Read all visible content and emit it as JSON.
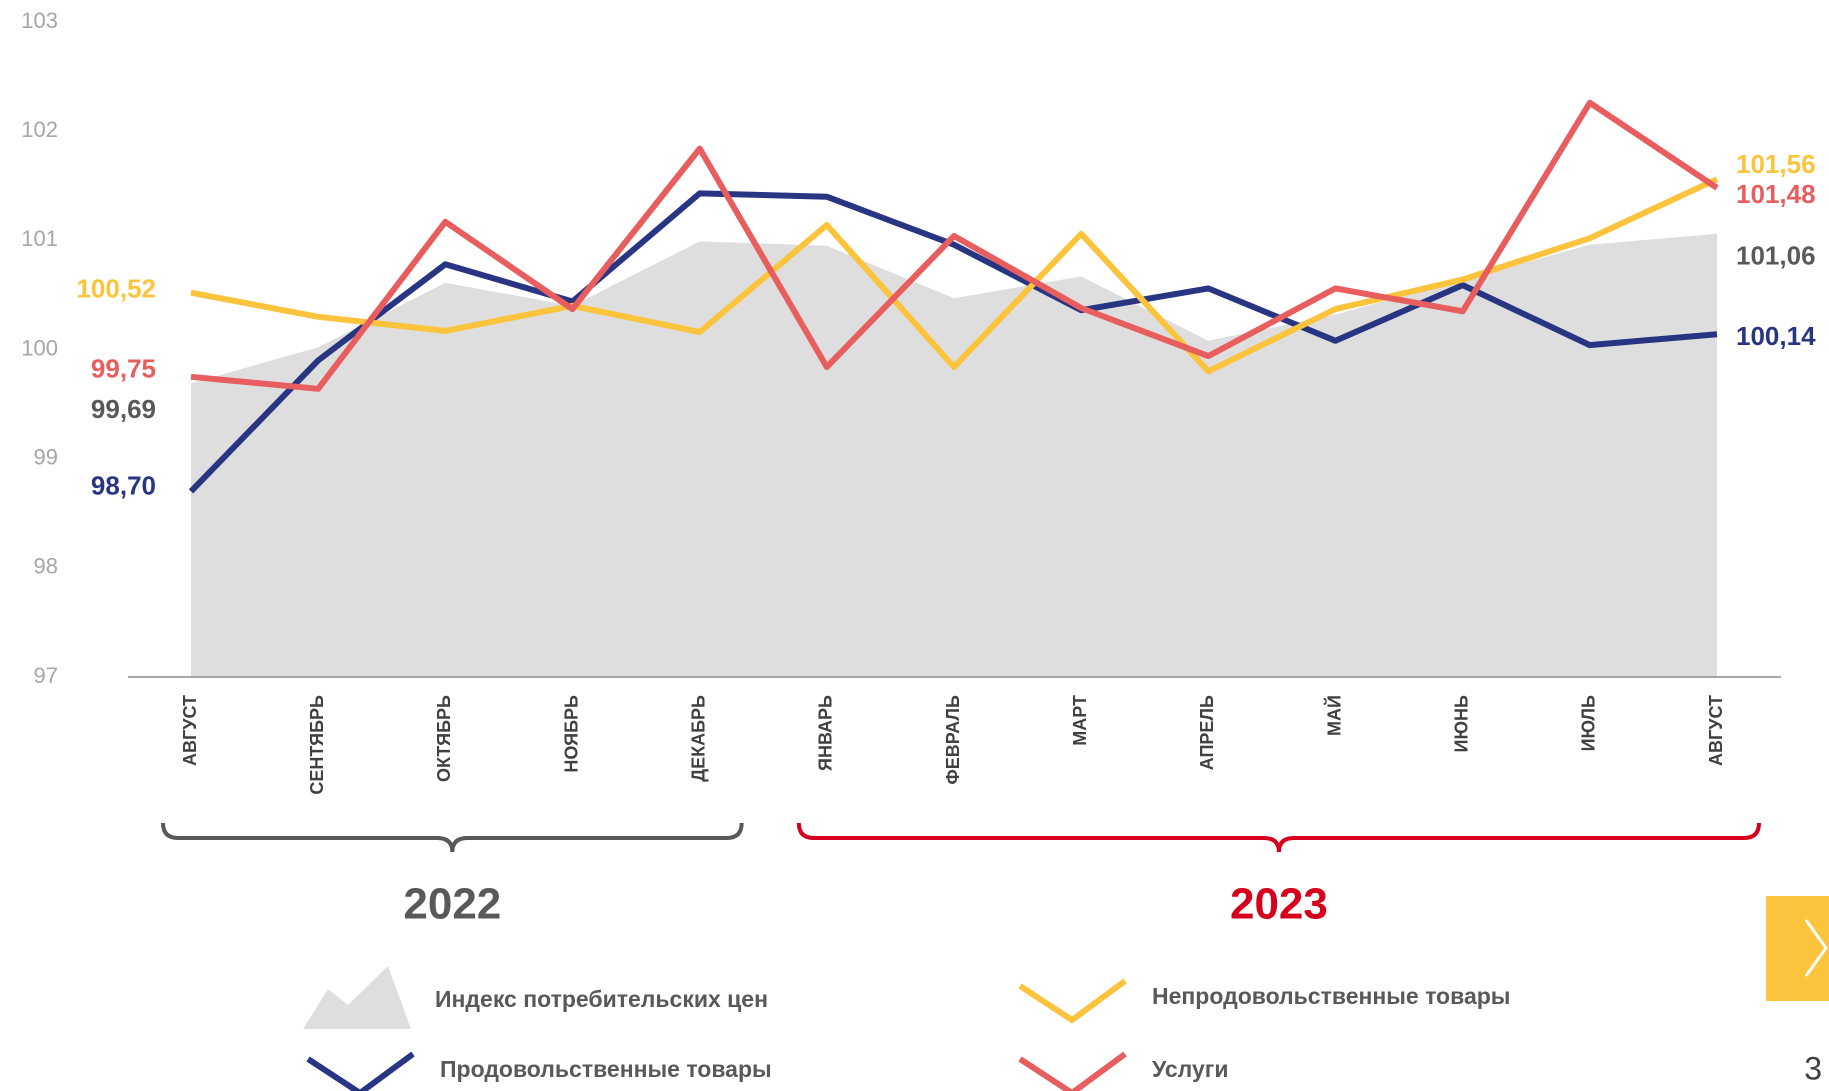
{
  "chart_data": {
    "type": "line",
    "categories": [
      "АВГУСТ",
      "СЕНТЯБРЬ",
      "ОКТЯБРЬ",
      "НОЯБРЬ",
      "ДЕКАБРЬ",
      "ЯНВАРЬ",
      "ФЕВРАЛЬ",
      "МАРТ",
      "АПРЕЛЬ",
      "МАЙ",
      "ИЮНЬ",
      "ИЮЛЬ",
      "АВГУСТ"
    ],
    "ylim": [
      97,
      103
    ],
    "yticks": [
      97,
      98,
      99,
      100,
      101,
      102,
      103
    ],
    "series": [
      {
        "name": "Индекс потребительских цен",
        "type": "area",
        "color": "#dedede",
        "label_color": "#595959",
        "values": [
          99.69,
          100.02,
          100.61,
          100.4,
          100.99,
          100.95,
          100.47,
          100.67,
          100.08,
          100.32,
          100.64,
          100.96,
          101.06
        ],
        "value_labels": [
          "99,69",
          null,
          null,
          null,
          null,
          null,
          null,
          null,
          null,
          null,
          null,
          null,
          "101,06"
        ]
      },
      {
        "name": "Продовольственные товары",
        "type": "line",
        "color": "#283583",
        "label_color": "#283583",
        "values": [
          98.7,
          99.9,
          100.78,
          100.44,
          101.43,
          101.4,
          100.96,
          100.36,
          100.56,
          100.08,
          100.59,
          100.04,
          100.14
        ],
        "value_labels": [
          "98,70",
          null,
          null,
          null,
          null,
          null,
          null,
          null,
          null,
          null,
          null,
          null,
          "100,14"
        ]
      },
      {
        "name": "Непродовольственные товары",
        "type": "line",
        "color": "#fcc33c",
        "label_color": "#fcc33c",
        "values": [
          100.52,
          100.3,
          100.17,
          100.4,
          100.16,
          101.14,
          99.84,
          101.06,
          99.8,
          100.37,
          100.64,
          101.02,
          101.56
        ],
        "value_labels": [
          "100,52",
          null,
          null,
          null,
          null,
          null,
          null,
          null,
          null,
          null,
          null,
          null,
          "101,56"
        ]
      },
      {
        "name": "Услуги",
        "type": "line",
        "color": "#e85d5d",
        "label_color": "#e85d5d",
        "values": [
          99.75,
          99.64,
          101.17,
          100.37,
          101.84,
          99.84,
          101.04,
          100.38,
          99.94,
          100.56,
          100.35,
          102.26,
          101.48
        ],
        "value_labels": [
          "99,75",
          null,
          null,
          null,
          null,
          null,
          null,
          null,
          null,
          null,
          null,
          null,
          "101,48"
        ]
      }
    ],
    "groups": [
      {
        "label": "2022",
        "from": 0,
        "to": 4,
        "color": "#595959"
      },
      {
        "label": "2023",
        "from": 5,
        "to": 12,
        "color": "#d6001c"
      }
    ]
  },
  "page_number": "3"
}
